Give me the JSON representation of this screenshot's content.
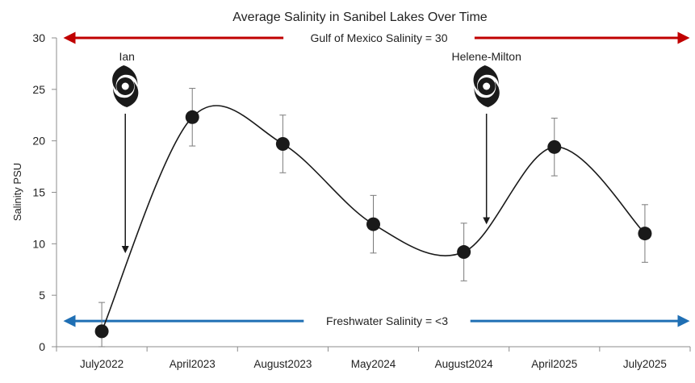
{
  "chart_data": {
    "type": "line",
    "title": "Average Salinity in Sanibel Lakes Over Time",
    "ylabel": "Salinity PSU",
    "xlabel": "",
    "ylim": [
      0,
      30
    ],
    "yticks": [
      0,
      5,
      10,
      15,
      20,
      25,
      30
    ],
    "categories": [
      "July2022",
      "April2023",
      "August2023",
      "May2024",
      "August2024",
      "April2025",
      "July2025"
    ],
    "series": [
      {
        "values": [
          1.5,
          22.3,
          19.7,
          11.9,
          9.2,
          19.4,
          11.0
        ],
        "error": [
          2.8,
          2.8,
          2.8,
          2.8,
          2.8,
          2.8,
          2.8
        ]
      }
    ],
    "reference_lines": [
      {
        "label": "Gulf of Mexico Salinity = 30",
        "value": 30,
        "color": "#c00000"
      },
      {
        "label": "Freshwater Salinity = <3",
        "value": 2.5,
        "color": "#1f6fb4"
      }
    ],
    "annotations": [
      {
        "label": "Ian",
        "icon": "hurricane-icon",
        "arrow_to": 9.2,
        "position": 0.26
      },
      {
        "label": "Helene-Milton",
        "icon": "hurricane-icon",
        "arrow_to": 12.0,
        "position": 4.25
      }
    ],
    "grid": false,
    "smooth": true,
    "marker_color": "#1a1a1a",
    "line_color": "#1a1a1a"
  }
}
